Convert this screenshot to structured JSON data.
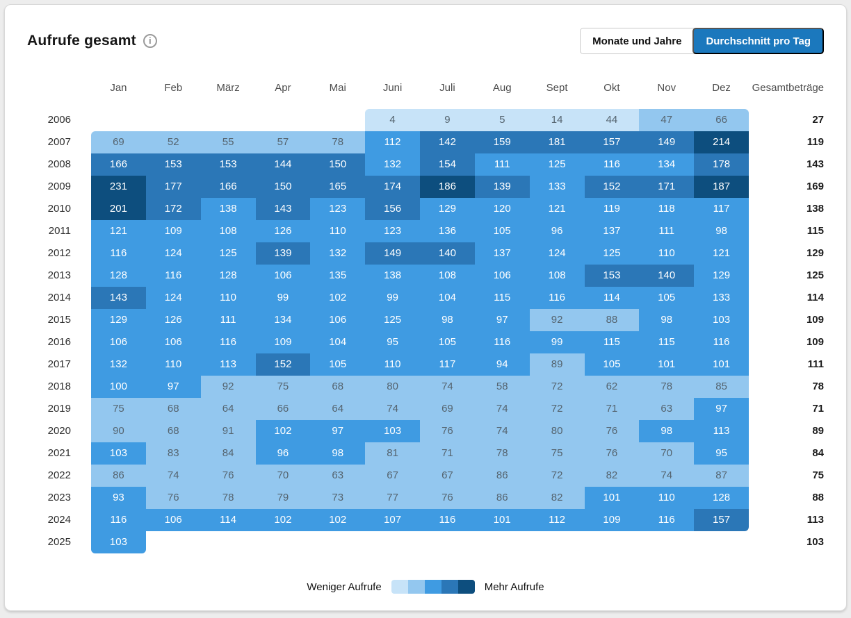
{
  "header": {
    "title": "Aufrufe gesamt",
    "toggle": {
      "options": [
        {
          "label": "Monate und Jahre",
          "active": false
        },
        {
          "label": "Durchschnitt pro Tag",
          "active": true
        }
      ],
      "active_color": "#1b78bd"
    }
  },
  "chart_data": {
    "type": "heatmap",
    "title": "Aufrufe gesamt",
    "columns": [
      "Jan",
      "Feb",
      "März",
      "Apr",
      "Mai",
      "Juni",
      "Juli",
      "Aug",
      "Sept",
      "Okt",
      "Nov",
      "Dez"
    ],
    "totals_header": "Gesamtbeträge",
    "rows": [
      {
        "year": "2006",
        "values": [
          null,
          null,
          null,
          null,
          null,
          4,
          9,
          5,
          14,
          44,
          47,
          66
        ],
        "total": 27
      },
      {
        "year": "2007",
        "values": [
          69,
          52,
          55,
          57,
          78,
          112,
          142,
          159,
          181,
          157,
          149,
          214
        ],
        "total": 119
      },
      {
        "year": "2008",
        "values": [
          166,
          153,
          153,
          144,
          150,
          132,
          154,
          111,
          125,
          116,
          134,
          178
        ],
        "total": 143
      },
      {
        "year": "2009",
        "values": [
          231,
          177,
          166,
          150,
          165,
          174,
          186,
          139,
          133,
          152,
          171,
          187
        ],
        "total": 169
      },
      {
        "year": "2010",
        "values": [
          201,
          172,
          138,
          143,
          123,
          156,
          129,
          120,
          121,
          119,
          118,
          117
        ],
        "total": 138
      },
      {
        "year": "2011",
        "values": [
          121,
          109,
          108,
          126,
          110,
          123,
          136,
          105,
          96,
          137,
          111,
          98
        ],
        "total": 115
      },
      {
        "year": "2012",
        "values": [
          116,
          124,
          125,
          139,
          132,
          149,
          140,
          137,
          124,
          125,
          110,
          121
        ],
        "total": 129
      },
      {
        "year": "2013",
        "values": [
          128,
          116,
          128,
          106,
          135,
          138,
          108,
          106,
          108,
          153,
          140,
          129
        ],
        "total": 125
      },
      {
        "year": "2014",
        "values": [
          143,
          124,
          110,
          99,
          102,
          99,
          104,
          115,
          116,
          114,
          105,
          133
        ],
        "total": 114
      },
      {
        "year": "2015",
        "values": [
          129,
          126,
          111,
          134,
          106,
          125,
          98,
          97,
          92,
          88,
          98,
          103
        ],
        "total": 109
      },
      {
        "year": "2016",
        "values": [
          106,
          106,
          116,
          109,
          104,
          95,
          105,
          116,
          99,
          115,
          115,
          116
        ],
        "total": 109
      },
      {
        "year": "2017",
        "values": [
          132,
          110,
          113,
          152,
          105,
          110,
          117,
          94,
          89,
          105,
          101,
          101
        ],
        "total": 111
      },
      {
        "year": "2018",
        "values": [
          100,
          97,
          92,
          75,
          68,
          80,
          74,
          58,
          72,
          62,
          78,
          85
        ],
        "total": 78
      },
      {
        "year": "2019",
        "values": [
          75,
          68,
          64,
          66,
          64,
          74,
          69,
          74,
          72,
          71,
          63,
          97
        ],
        "total": 71
      },
      {
        "year": "2020",
        "values": [
          90,
          68,
          91,
          102,
          97,
          103,
          76,
          74,
          80,
          76,
          98,
          113
        ],
        "total": 89
      },
      {
        "year": "2021",
        "values": [
          103,
          83,
          84,
          96,
          98,
          81,
          71,
          78,
          75,
          76,
          70,
          95
        ],
        "total": 84
      },
      {
        "year": "2022",
        "values": [
          86,
          74,
          76,
          70,
          63,
          67,
          67,
          86,
          72,
          82,
          74,
          87
        ],
        "total": 75
      },
      {
        "year": "2023",
        "values": [
          93,
          76,
          78,
          79,
          73,
          77,
          76,
          86,
          82,
          101,
          110,
          128
        ],
        "total": 88
      },
      {
        "year": "2024",
        "values": [
          116,
          106,
          114,
          102,
          102,
          107,
          116,
          101,
          112,
          109,
          116,
          157
        ],
        "total": 113
      },
      {
        "year": "2025",
        "values": [
          103,
          null,
          null,
          null,
          null,
          null,
          null,
          null,
          null,
          null,
          null,
          null
        ],
        "total": 103
      }
    ],
    "color_levels": {
      "palette": [
        "#c7e3f8",
        "#93c7ef",
        "#3f9be2",
        "#2b77b7",
        "#0d4e7e"
      ],
      "thresholds": [
        45,
        93,
        139,
        186
      ]
    },
    "legend": {
      "less_label": "Weniger Aufrufe",
      "more_label": "Mehr Aufrufe",
      "legend_position": "bottom"
    }
  }
}
